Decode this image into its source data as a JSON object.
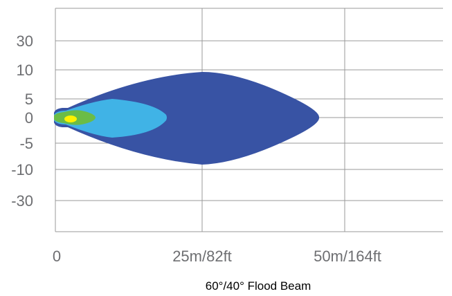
{
  "chart_data": {
    "type": "area",
    "title": "60°/40° Flood Beam",
    "x_tick_labels": [
      "0",
      "25m/82ft",
      "50m/164ft"
    ],
    "y_tick_labels": [
      "30",
      "10",
      "5",
      "0",
      "-5",
      "-10",
      "-30"
    ],
    "grid": true,
    "series": [
      {
        "color": "#3853a4",
        "reach_index": 1.85,
        "half_width_label": 10
      },
      {
        "color": "#40b3e6",
        "reach_index": 0.78,
        "half_width_label": 5
      },
      {
        "color": "#6bbc46",
        "reach_index": 0.29,
        "half_width_label": 1
      },
      {
        "color": "#fff200",
        "reach_index": 0.15,
        "half_width_label": 0.5
      }
    ]
  }
}
